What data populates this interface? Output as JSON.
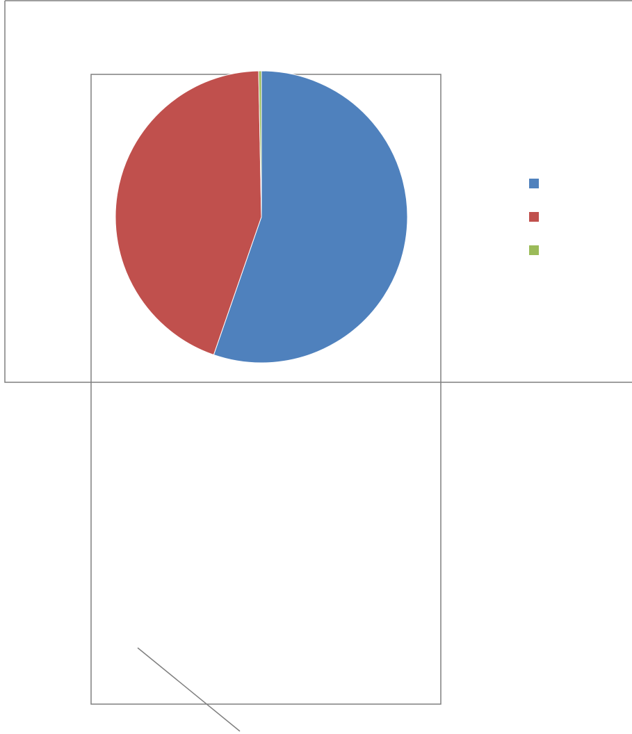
{
  "chart_data": {
    "type": "pie",
    "title": "",
    "series": [
      {
        "values": [
          55.3,
          44.4,
          0.3
        ],
        "colors": [
          "#4f81bd",
          "#c0504d",
          "#9bbb59"
        ]
      }
    ],
    "legend": {
      "placement": "right",
      "entries": [
        {
          "label": "",
          "color": "#4f81bd"
        },
        {
          "label": "",
          "color": "#c0504d"
        },
        {
          "label": "",
          "color": "#9bbb59"
        }
      ]
    },
    "start_angle_deg": 0,
    "direction": "clockwise"
  }
}
